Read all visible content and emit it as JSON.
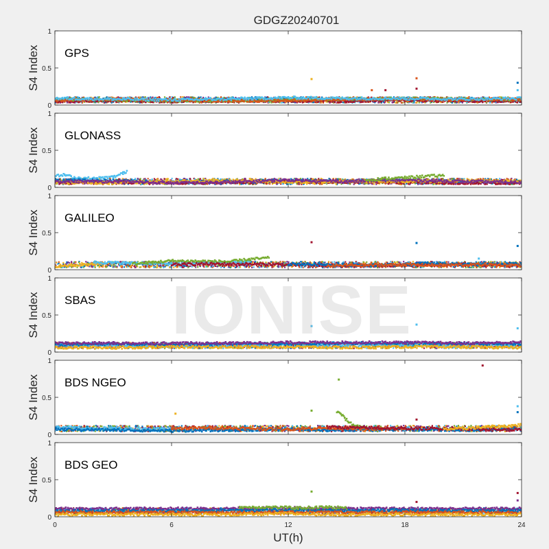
{
  "title": "GDGZ20240701",
  "xlabel": "UT(h)",
  "watermark": "IONISE",
  "colors": {
    "blue": "#0072bd",
    "orange": "#d95319",
    "yellow": "#edb120",
    "purple": "#7e2f8e",
    "green": "#77ac30",
    "cyan": "#4dbeee",
    "darkred": "#a2142f"
  },
  "chart_data": [
    {
      "type": "scatter",
      "panel": "GPS",
      "ylabel": "S4 Index",
      "xlim": [
        0,
        24
      ],
      "ylim": [
        0,
        1
      ],
      "xticks": [
        "0",
        "6",
        "12",
        "18",
        "24"
      ],
      "yticks": [
        "0",
        "0.5",
        "1"
      ],
      "grid": false,
      "baseline_s4": 0.07,
      "series": [
        {
          "color": "blue",
          "x": [
            0,
            3,
            6,
            9,
            12,
            15,
            18,
            21,
            24
          ],
          "y": [
            0.07,
            0.06,
            0.06,
            0.07,
            0.08,
            0.07,
            0.08,
            0.07,
            0.06
          ]
        },
        {
          "color": "darkred",
          "x": [
            0,
            3,
            6,
            9,
            12,
            15,
            18,
            21,
            24
          ],
          "y": [
            0.05,
            0.06,
            0.05,
            0.06,
            0.06,
            0.05,
            0.07,
            0.06,
            0.05
          ]
        },
        {
          "color": "green",
          "x": [
            0,
            3,
            6,
            9,
            12,
            15,
            18,
            21,
            24
          ],
          "y": [
            0.08,
            0.07,
            0.06,
            0.06,
            0.07,
            0.08,
            0.09,
            0.08,
            0.07
          ]
        },
        {
          "color": "orange",
          "x": [
            0,
            3,
            6,
            9,
            12,
            15,
            18,
            21,
            24
          ],
          "y": [
            0.06,
            0.08,
            0.07,
            0.06,
            0.06,
            0.08,
            0.08,
            0.07,
            0.08
          ]
        },
        {
          "color": "cyan",
          "x": [
            0,
            3,
            6,
            9,
            12,
            15,
            18,
            21,
            24
          ],
          "y": [
            0.09,
            0.08,
            0.07,
            0.08,
            0.1,
            0.09,
            0.09,
            0.08,
            0.09
          ]
        }
      ],
      "outliers": [
        {
          "x": 13.2,
          "y": 0.35,
          "color": "yellow"
        },
        {
          "x": 16.3,
          "y": 0.2,
          "color": "orange"
        },
        {
          "x": 17.0,
          "y": 0.2,
          "color": "darkred"
        },
        {
          "x": 18.6,
          "y": 0.36,
          "color": "orange"
        },
        {
          "x": 18.6,
          "y": 0.22,
          "color": "darkred"
        },
        {
          "x": 23.8,
          "y": 0.3,
          "color": "blue"
        },
        {
          "x": 23.8,
          "y": 0.2,
          "color": "cyan"
        }
      ]
    },
    {
      "type": "scatter",
      "panel": "GLONASS",
      "ylabel": "S4 Index",
      "xlim": [
        0,
        24
      ],
      "ylim": [
        0,
        1
      ],
      "xticks": [
        "0",
        "6",
        "12",
        "18",
        "24"
      ],
      "yticks": [
        "0",
        "0.5",
        "1"
      ],
      "grid": false,
      "baseline_s4": 0.08,
      "series": [
        {
          "color": "cyan",
          "x": [
            0,
            0.5,
            1,
            2,
            3,
            3.5,
            3.7
          ],
          "y": [
            0.15,
            0.17,
            0.13,
            0.12,
            0.14,
            0.19,
            0.22
          ]
        },
        {
          "color": "blue",
          "x": [
            0,
            3,
            6,
            9,
            12,
            15,
            18,
            21,
            24
          ],
          "y": [
            0.1,
            0.09,
            0.07,
            0.08,
            0.09,
            0.08,
            0.09,
            0.08,
            0.06
          ]
        },
        {
          "color": "darkred",
          "x": [
            0,
            3,
            6,
            9,
            12,
            15,
            18,
            21,
            24
          ],
          "y": [
            0.06,
            0.07,
            0.06,
            0.07,
            0.08,
            0.07,
            0.07,
            0.06,
            0.06
          ]
        },
        {
          "color": "yellow",
          "x": [
            0,
            3,
            6,
            9,
            12,
            15,
            18,
            21,
            24
          ],
          "y": [
            0.07,
            0.06,
            0.08,
            0.09,
            0.07,
            0.08,
            0.08,
            0.09,
            0.08
          ]
        },
        {
          "color": "purple",
          "x": [
            0,
            3,
            6,
            9,
            12,
            15,
            18,
            21,
            24
          ],
          "y": [
            0.08,
            0.08,
            0.06,
            0.07,
            0.1,
            0.08,
            0.1,
            0.08,
            0.07
          ]
        },
        {
          "color": "green",
          "x": [
            16,
            17,
            18,
            19,
            20
          ],
          "y": [
            0.1,
            0.12,
            0.13,
            0.15,
            0.16
          ]
        }
      ],
      "outliers": []
    },
    {
      "type": "scatter",
      "panel": "GALILEO",
      "ylabel": "S4 Index",
      "xlim": [
        0,
        24
      ],
      "ylim": [
        0,
        1
      ],
      "xticks": [
        "0",
        "6",
        "12",
        "18",
        "24"
      ],
      "yticks": [
        "0",
        "0.5",
        "1"
      ],
      "grid": false,
      "baseline_s4": 0.07,
      "series": [
        {
          "color": "yellow",
          "x": [
            0,
            1,
            2,
            2.5
          ],
          "y": [
            0.05,
            0.06,
            0.08,
            0.1
          ]
        },
        {
          "color": "cyan",
          "x": [
            2,
            4,
            6,
            8,
            10
          ],
          "y": [
            0.1,
            0.09,
            0.08,
            0.09,
            0.11
          ]
        },
        {
          "color": "green",
          "x": [
            4,
            5,
            6,
            9,
            10,
            11
          ],
          "y": [
            0.08,
            0.1,
            0.12,
            0.11,
            0.14,
            0.16
          ]
        },
        {
          "color": "darkred",
          "x": [
            6,
            8,
            12,
            14,
            16,
            18,
            20,
            22,
            24
          ],
          "y": [
            0.07,
            0.08,
            0.07,
            0.06,
            0.05,
            0.06,
            0.07,
            0.07,
            0.06
          ]
        },
        {
          "color": "blue",
          "x": [
            12,
            14,
            16,
            18,
            19,
            20,
            22,
            24
          ],
          "y": [
            0.08,
            0.07,
            0.06,
            0.07,
            0.09,
            0.08,
            0.07,
            0.08
          ]
        },
        {
          "color": "orange",
          "x": [
            14,
            15,
            16,
            18,
            20,
            22,
            24
          ],
          "y": [
            0.05,
            0.06,
            0.06,
            0.07,
            0.06,
            0.07,
            0.06
          ]
        }
      ],
      "outliers": [
        {
          "x": 13.2,
          "y": 0.37,
          "color": "darkred"
        },
        {
          "x": 18.6,
          "y": 0.36,
          "color": "blue"
        },
        {
          "x": 21.8,
          "y": 0.15,
          "color": "cyan"
        },
        {
          "x": 23.8,
          "y": 0.32,
          "color": "blue"
        }
      ]
    },
    {
      "type": "scatter",
      "panel": "SBAS",
      "ylabel": "S4 Index",
      "xlim": [
        0,
        24
      ],
      "ylim": [
        0,
        1
      ],
      "xticks": [
        "0",
        "6",
        "12",
        "18",
        "24"
      ],
      "yticks": [
        "0",
        "0.5",
        "1"
      ],
      "grid": false,
      "baseline_s4": 0.09,
      "series": [
        {
          "color": "cyan",
          "x": [
            0,
            3,
            6,
            9,
            12,
            15,
            18,
            21,
            24
          ],
          "y": [
            0.09,
            0.09,
            0.09,
            0.09,
            0.1,
            0.09,
            0.1,
            0.09,
            0.1
          ]
        },
        {
          "color": "blue",
          "x": [
            0,
            3,
            6,
            9,
            12,
            15,
            18,
            21,
            24
          ],
          "y": [
            0.1,
            0.11,
            0.1,
            0.11,
            0.11,
            0.12,
            0.12,
            0.11,
            0.11
          ]
        },
        {
          "color": "yellow",
          "x": [
            0,
            3,
            6,
            9,
            12,
            15,
            18,
            21,
            24
          ],
          "y": [
            0.06,
            0.06,
            0.07,
            0.07,
            0.07,
            0.06,
            0.07,
            0.07,
            0.06
          ]
        },
        {
          "color": "purple",
          "x": [
            0,
            3,
            6,
            9,
            12,
            15,
            18,
            21,
            24
          ],
          "y": [
            0.12,
            0.12,
            0.12,
            0.12,
            0.13,
            0.13,
            0.13,
            0.12,
            0.13
          ]
        }
      ],
      "outliers": [
        {
          "x": 13.2,
          "y": 0.35,
          "color": "cyan"
        },
        {
          "x": 18.6,
          "y": 0.37,
          "color": "cyan"
        },
        {
          "x": 23.8,
          "y": 0.32,
          "color": "cyan"
        }
      ]
    },
    {
      "type": "scatter",
      "panel": "BDS NGEO",
      "ylabel": "S4 Index",
      "xlim": [
        0,
        24
      ],
      "ylim": [
        0,
        1
      ],
      "xticks": [
        "0",
        "6",
        "12",
        "18",
        "24"
      ],
      "yticks": [
        "0",
        "0.5",
        "1"
      ],
      "grid": false,
      "baseline_s4": 0.08,
      "series": [
        {
          "color": "cyan",
          "x": [
            0,
            1,
            2,
            3,
            4,
            5,
            6
          ],
          "y": [
            0.1,
            0.09,
            0.08,
            0.08,
            0.07,
            0.07,
            0.08
          ]
        },
        {
          "color": "blue",
          "x": [
            0,
            3,
            6,
            9,
            12,
            15,
            18,
            21,
            24
          ],
          "y": [
            0.07,
            0.06,
            0.05,
            0.06,
            0.07,
            0.06,
            0.07,
            0.06,
            0.07
          ]
        },
        {
          "color": "orange",
          "x": [
            6,
            8,
            10,
            12,
            14,
            16,
            18
          ],
          "y": [
            0.08,
            0.09,
            0.08,
            0.07,
            0.09,
            0.07,
            0.08
          ]
        },
        {
          "color": "green",
          "x": [
            14.5,
            14.7,
            14.9,
            15.1,
            15.4,
            16
          ],
          "y": [
            0.3,
            0.28,
            0.22,
            0.17,
            0.12,
            0.1
          ]
        },
        {
          "color": "darkred",
          "x": [
            14,
            16,
            18,
            20,
            22,
            24
          ],
          "y": [
            0.1,
            0.09,
            0.08,
            0.08,
            0.07,
            0.06
          ]
        },
        {
          "color": "yellow",
          "x": [
            20,
            21,
            22,
            23,
            24
          ],
          "y": [
            0.07,
            0.08,
            0.1,
            0.11,
            0.13
          ]
        }
      ],
      "outliers": [
        {
          "x": 6.2,
          "y": 0.28,
          "color": "yellow"
        },
        {
          "x": 13.2,
          "y": 0.32,
          "color": "green"
        },
        {
          "x": 14.6,
          "y": 0.74,
          "color": "green"
        },
        {
          "x": 18.6,
          "y": 0.2,
          "color": "darkred"
        },
        {
          "x": 22.0,
          "y": 0.93,
          "color": "darkred"
        },
        {
          "x": 23.8,
          "y": 0.38,
          "color": "cyan"
        },
        {
          "x": 23.8,
          "y": 0.3,
          "color": "blue"
        }
      ]
    },
    {
      "type": "scatter",
      "panel": "BDS GEO",
      "ylabel": "S4 Index",
      "xlim": [
        0,
        24
      ],
      "ylim": [
        0,
        1
      ],
      "xticks": [
        "0",
        "6",
        "12",
        "18",
        "24"
      ],
      "yticks": [
        "0",
        "0.5",
        "1"
      ],
      "grid": false,
      "baseline_s4": 0.08,
      "series": [
        {
          "color": "purple",
          "x": [
            0,
            3,
            6,
            9,
            12,
            15,
            18,
            21,
            24
          ],
          "y": [
            0.11,
            0.11,
            0.11,
            0.11,
            0.12,
            0.11,
            0.11,
            0.11,
            0.11
          ]
        },
        {
          "color": "blue",
          "x": [
            0,
            3,
            6,
            9,
            12,
            15,
            18,
            21,
            24
          ],
          "y": [
            0.08,
            0.08,
            0.08,
            0.09,
            0.09,
            0.08,
            0.09,
            0.08,
            0.08
          ]
        },
        {
          "color": "orange",
          "x": [
            0,
            3,
            6,
            9,
            12,
            15,
            18,
            21,
            24
          ],
          "y": [
            0.06,
            0.06,
            0.06,
            0.06,
            0.06,
            0.06,
            0.06,
            0.06,
            0.06
          ]
        },
        {
          "color": "yellow",
          "x": [
            0,
            3,
            6,
            9,
            12,
            15,
            18,
            21,
            24
          ],
          "y": [
            0.03,
            0.03,
            0.03,
            0.03,
            0.04,
            0.03,
            0.03,
            0.03,
            0.03
          ]
        },
        {
          "color": "green",
          "x": [
            9.5,
            11,
            12.5,
            14,
            15
          ],
          "y": [
            0.13,
            0.13,
            0.12,
            0.13,
            0.12
          ]
        }
      ],
      "outliers": [
        {
          "x": 13.2,
          "y": 0.34,
          "color": "green"
        },
        {
          "x": 18.6,
          "y": 0.2,
          "color": "darkred"
        },
        {
          "x": 23.8,
          "y": 0.32,
          "color": "darkred"
        },
        {
          "x": 23.8,
          "y": 0.22,
          "color": "purple"
        }
      ]
    }
  ]
}
